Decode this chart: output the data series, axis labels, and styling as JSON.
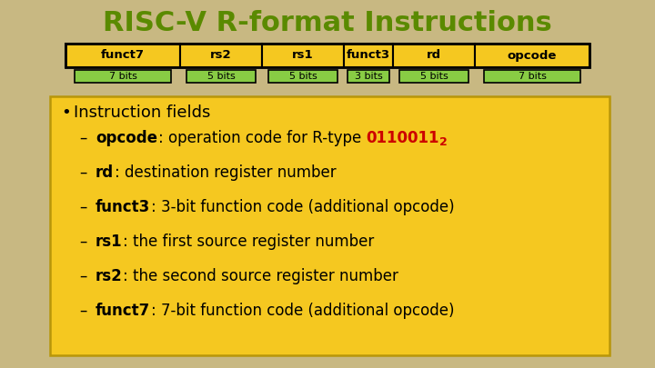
{
  "title": "RISC-V R-format Instructions",
  "title_color": "#5a8a00",
  "title_fontsize": 22,
  "bg_color": "#c8b882",
  "fields": [
    "funct7",
    "rs2",
    "rs1",
    "funct3",
    "rd",
    "opcode"
  ],
  "bits": [
    "7 bits",
    "5 bits",
    "5 bits",
    "3 bits",
    "5 bits",
    "7 bits"
  ],
  "field_widths": [
    7,
    5,
    5,
    3,
    5,
    7
  ],
  "field_box_color": "#f5c820",
  "bits_box_color": "#88cc44",
  "content_box_color": "#f5c820",
  "content_box_border": "#b8960a",
  "bullet_text": "Instruction fields",
  "lines": [
    {
      "prefix": "opcode",
      "text": ": operation code for R-type ",
      "highlight": "0110011",
      "subscript": "2",
      "highlight_color": "#cc0000"
    },
    {
      "prefix": "rd",
      "text": ": destination register number",
      "highlight": "",
      "subscript": "",
      "highlight_color": "#cc0000"
    },
    {
      "prefix": "funct3",
      "text": ": 3-bit function code (additional opcode)",
      "highlight": "",
      "subscript": "",
      "highlight_color": "#cc0000"
    },
    {
      "prefix": "rs1",
      "text": ": the first source register number",
      "highlight": "",
      "subscript": "",
      "highlight_color": "#cc0000"
    },
    {
      "prefix": "rs2",
      "text": ": the second source register number",
      "highlight": "",
      "subscript": "",
      "highlight_color": "#cc0000"
    },
    {
      "prefix": "funct7",
      "text": ": 7-bit function code (additional opcode)",
      "highlight": "",
      "subscript": "",
      "highlight_color": "#cc0000"
    }
  ],
  "text_color": "#1a1a1a"
}
